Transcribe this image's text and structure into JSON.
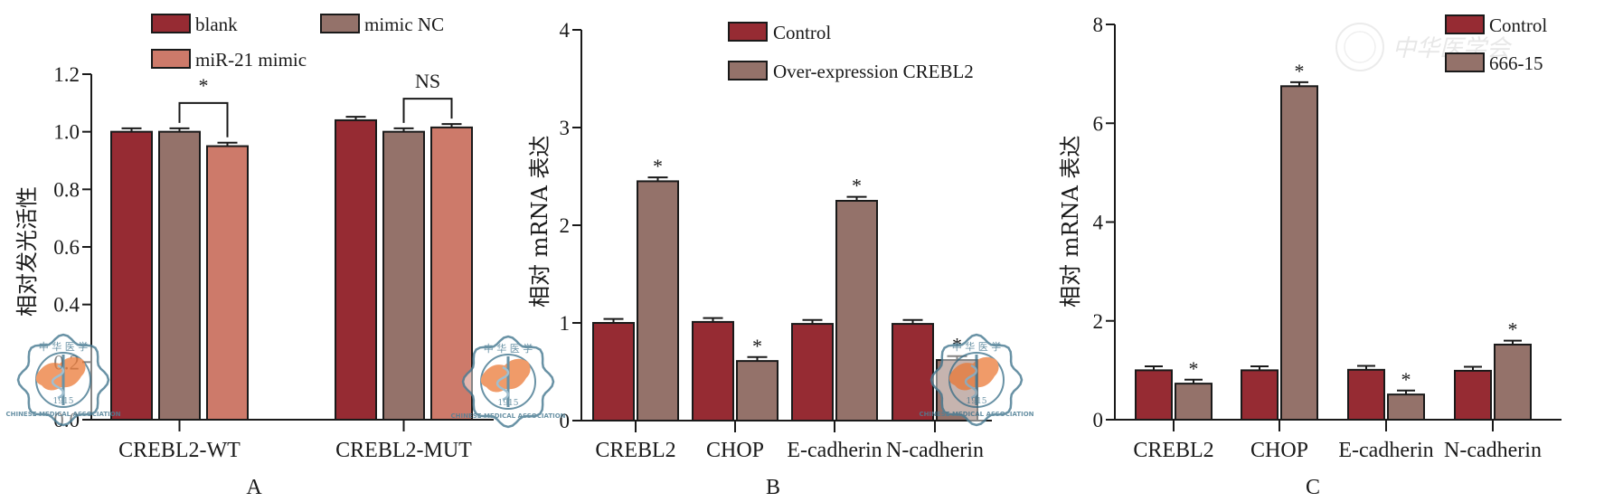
{
  "colors": {
    "blank": "#962b33",
    "mimic_nc": "#94726a",
    "mir21": "#cd7a6a",
    "control": "#962b33",
    "treatment": "#94726a",
    "watermark_blue": "#4f7f96",
    "watermark_orange": "#ee8a4f"
  },
  "watermark": {
    "seal_text_top": "中 华 医 学",
    "seal_text_bottom": "CHINESE MEDICAL ASSOCIATION",
    "seal_year": "1915",
    "corner_text": "中华医学会"
  },
  "chart_data": [
    {
      "panel": "A",
      "type": "bar",
      "title": "",
      "panel_label": "A",
      "xlabel": "",
      "ylabel": "相对发光活性",
      "ylim": [
        0,
        1.2
      ],
      "yticks": [
        0.0,
        0.2,
        0.4,
        0.6,
        0.8,
        1.0,
        1.2
      ],
      "ytick_labels": [
        "0.0",
        "0.2",
        "0.4",
        "0.6",
        "0.8",
        "1.0",
        "1.2"
      ],
      "grid": false,
      "legend_position": "top",
      "categories": [
        "CREBL2-WT",
        "CREBL2-MUT"
      ],
      "series": [
        {
          "name": "blank",
          "color_key": "blank",
          "values": [
            1.0,
            1.04
          ],
          "errors": [
            0.012,
            0.012
          ]
        },
        {
          "name": "mimic NC",
          "color_key": "mimic_nc",
          "values": [
            1.0,
            1.0
          ],
          "errors": [
            0.012,
            0.012
          ]
        },
        {
          "name": "miR-21 mimic",
          "color_key": "mir21",
          "values": [
            0.95,
            1.015
          ],
          "errors": [
            0.012,
            0.012
          ]
        }
      ],
      "annotations": [
        {
          "category": 0,
          "from_series": 1,
          "to_series": 2,
          "text": "*",
          "bracket": true
        },
        {
          "category": 1,
          "from_series": 1,
          "to_series": 2,
          "text": "NS",
          "bracket": true
        }
      ]
    },
    {
      "panel": "B",
      "type": "bar",
      "title": "",
      "panel_label": "B",
      "xlabel": "",
      "ylabel": "相对 mRNA 表达",
      "ylim": [
        0,
        4
      ],
      "yticks": [
        0,
        1,
        2,
        3,
        4
      ],
      "ytick_labels": [
        "0",
        "1",
        "2",
        "3",
        "4"
      ],
      "grid": false,
      "legend_position": "top-right",
      "categories": [
        "CREBL2",
        "CHOP",
        "E-cadherin",
        "N-cadherin"
      ],
      "series": [
        {
          "name": "Control",
          "color_key": "control",
          "values": [
            1.0,
            1.01,
            0.99,
            0.99
          ],
          "errors": [
            0.04,
            0.04,
            0.04,
            0.04
          ]
        },
        {
          "name": "Over-expression CREBL2",
          "color_key": "treatment",
          "values": [
            2.45,
            0.61,
            2.25,
            0.62
          ],
          "errors": [
            0.04,
            0.04,
            0.04,
            0.04
          ]
        }
      ],
      "annotations": [
        {
          "category": 0,
          "series": 1,
          "text": "*"
        },
        {
          "category": 1,
          "series": 1,
          "text": "*"
        },
        {
          "category": 2,
          "series": 1,
          "text": "*"
        },
        {
          "category": 3,
          "series": 1,
          "text": "*"
        }
      ]
    },
    {
      "panel": "C",
      "type": "bar",
      "title": "",
      "panel_label": "C",
      "xlabel": "",
      "ylabel": "相对 mRNA 表达",
      "ylim": [
        0,
        8
      ],
      "yticks": [
        0,
        2,
        4,
        6,
        8
      ],
      "ytick_labels": [
        "0",
        "2",
        "4",
        "6",
        "8"
      ],
      "grid": false,
      "legend_position": "top-right",
      "categories": [
        "CREBL2",
        "CHOP",
        "E-cadherin",
        "N-cadherin"
      ],
      "series": [
        {
          "name": "Control",
          "color_key": "control",
          "values": [
            1.0,
            1.0,
            1.01,
            0.99
          ],
          "errors": [
            0.08,
            0.08,
            0.08,
            0.08
          ]
        },
        {
          "name": "666-15",
          "color_key": "treatment",
          "values": [
            0.73,
            6.75,
            0.51,
            1.52
          ],
          "errors": [
            0.08,
            0.08,
            0.08,
            0.08
          ]
        }
      ],
      "annotations": [
        {
          "category": 0,
          "series": 1,
          "text": "*"
        },
        {
          "category": 1,
          "series": 1,
          "text": "*"
        },
        {
          "category": 2,
          "series": 1,
          "text": "*"
        },
        {
          "category": 3,
          "series": 1,
          "text": "*"
        }
      ]
    }
  ]
}
